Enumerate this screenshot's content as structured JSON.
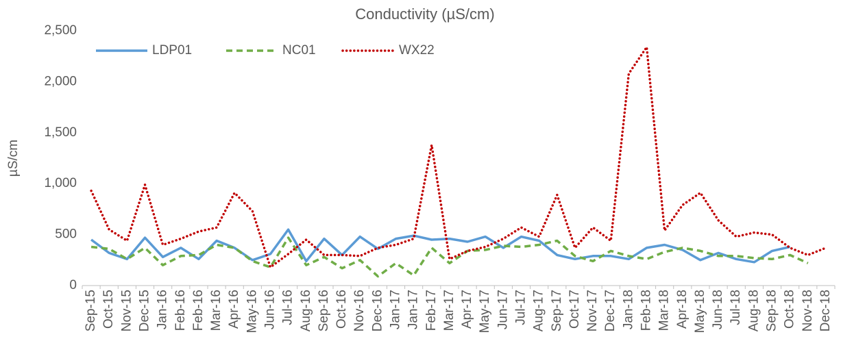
{
  "chart_data": {
    "type": "line",
    "title": "Conductivity (µS/cm)",
    "y_label": "µS/cm",
    "categories": [
      "Sep-15",
      "Oct-15",
      "Nov-15",
      "Dec-15",
      "Jan-16",
      "Feb-16",
      "Feb-16",
      "Mar-16",
      "Apr-16",
      "May-16",
      "Jun-16",
      "Jul-16",
      "Aug-16",
      "Sep-16",
      "Oct-16",
      "Nov-16",
      "Dec-16",
      "Jan-17",
      "Jan-17",
      "Feb-17",
      "Mar-17",
      "Apr-17",
      "May-17",
      "Jun-17",
      "Jul-17",
      "Aug-17",
      "Sep-17",
      "Oct-17",
      "Nov-17",
      "Dec-17",
      "Jan-18",
      "Feb-18",
      "Mar-18",
      "Apr-18",
      "May-18",
      "Jun-18",
      "Jul-18",
      "Aug-18",
      "Sep-18",
      "Oct-18",
      "Nov-18",
      "Dec-18"
    ],
    "series": [
      {
        "name": "LDP01",
        "color": "#5b9bd5",
        "dash": "solid",
        "values": [
          450,
          320,
          260,
          470,
          280,
          370,
          260,
          440,
          370,
          250,
          310,
          550,
          240,
          460,
          300,
          480,
          360,
          460,
          490,
          450,
          460,
          430,
          480,
          370,
          480,
          440,
          300,
          260,
          290,
          290,
          260,
          370,
          400,
          350,
          250,
          320,
          260,
          230,
          340,
          380,
          null,
          null
        ]
      },
      {
        "name": "NC01",
        "color": "#70ad47",
        "dash": "dashed",
        "values": [
          380,
          360,
          260,
          370,
          200,
          290,
          300,
          400,
          370,
          240,
          180,
          470,
          200,
          280,
          170,
          250,
          90,
          220,
          100,
          370,
          220,
          340,
          350,
          390,
          380,
          400,
          440,
          290,
          240,
          340,
          290,
          260,
          330,
          370,
          340,
          290,
          290,
          270,
          260,
          300,
          220,
          null
        ]
      },
      {
        "name": "WX22",
        "color": "#c00000",
        "dash": "dotted",
        "values": [
          930,
          550,
          440,
          990,
          400,
          460,
          530,
          570,
          910,
          730,
          180,
          310,
          450,
          300,
          300,
          290,
          370,
          400,
          460,
          1380,
          260,
          340,
          380,
          460,
          570,
          480,
          890,
          370,
          570,
          440,
          2080,
          2340,
          540,
          790,
          910,
          640,
          480,
          520,
          500,
          370,
          300,
          370
        ]
      }
    ],
    "ylim": [
      0,
      2500
    ],
    "yticks": [
      0,
      500,
      {
        "value": 1000,
        "label": "1,000"
      },
      {
        "value": 1500,
        "label": "1,500"
      },
      {
        "value": 2000,
        "label": "2,000"
      },
      {
        "value": 2500,
        "label": "2,500"
      }
    ],
    "grid": false,
    "legend": "top-left"
  }
}
